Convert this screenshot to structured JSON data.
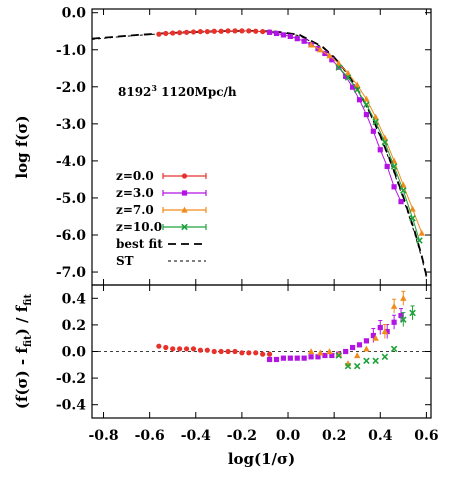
{
  "chart_data": [
    {
      "type": "scatter",
      "panel": "top",
      "ylabel": "log f(σ)",
      "xlim": [
        -0.85,
        0.62
      ],
      "ylim": [
        -7.35,
        0.1
      ],
      "yticks": [
        0.0,
        -1.0,
        -2.0,
        -3.0,
        -4.0,
        -5.0,
        -6.0,
        -7.0
      ],
      "ytick_labels": [
        "0.0",
        "-1.0",
        "-2.0",
        "-3.0",
        "-4.0",
        "-5.0",
        "-6.0",
        "-7.0"
      ],
      "annotation": {
        "base": "8192",
        "sup": "3",
        "rest": " 1120Mpc/h"
      },
      "legend_position": "lower-left",
      "series": [
        {
          "name": "z=0.0",
          "color": "#e8312a",
          "marker": "circle",
          "x": [
            -0.56,
            -0.53,
            -0.5,
            -0.47,
            -0.44,
            -0.41,
            -0.38,
            -0.35,
            -0.32,
            -0.29,
            -0.26,
            -0.23,
            -0.2,
            -0.17,
            -0.14,
            -0.11,
            -0.08
          ],
          "y": [
            -0.58,
            -0.56,
            -0.55,
            -0.54,
            -0.53,
            -0.52,
            -0.51,
            -0.51,
            -0.5,
            -0.5,
            -0.49,
            -0.49,
            -0.49,
            -0.49,
            -0.5,
            -0.51,
            -0.52
          ]
        },
        {
          "name": "z=3.0",
          "color": "#b215e3",
          "marker": "square",
          "x": [
            -0.08,
            -0.05,
            -0.02,
            0.01,
            0.04,
            0.07,
            0.1,
            0.13,
            0.16,
            0.19,
            0.22,
            0.25,
            0.28,
            0.31,
            0.34,
            0.37,
            0.4,
            0.43,
            0.46,
            0.49
          ],
          "y": [
            -0.53,
            -0.56,
            -0.6,
            -0.64,
            -0.7,
            -0.77,
            -0.86,
            -0.97,
            -1.1,
            -1.27,
            -1.47,
            -1.72,
            -2.01,
            -2.35,
            -2.75,
            -3.2,
            -3.7,
            -4.15,
            -4.7,
            -5.1
          ]
        },
        {
          "name": "z=7.0",
          "color": "#f08c1c",
          "marker": "triangle",
          "x": [
            0.1,
            0.14,
            0.18,
            0.22,
            0.26,
            0.3,
            0.34,
            0.38,
            0.42,
            0.46,
            0.5,
            0.54,
            0.58
          ],
          "y": [
            -0.87,
            -1.0,
            -1.16,
            -1.37,
            -1.63,
            -1.95,
            -2.33,
            -2.82,
            -3.38,
            -4.0,
            -4.65,
            -5.3,
            -5.95
          ]
        },
        {
          "name": "z=10.0",
          "color": "#1ea23c",
          "marker": "cross",
          "x": [
            0.22,
            0.26,
            0.3,
            0.34,
            0.38,
            0.42,
            0.46,
            0.5,
            0.54,
            0.57
          ],
          "y": [
            -1.48,
            -1.75,
            -2.08,
            -2.48,
            -2.95,
            -3.5,
            -4.15,
            -4.8,
            -5.55,
            -6.15
          ]
        }
      ],
      "curves": [
        {
          "name": "best fit",
          "color": "#000000",
          "style": "long-dash",
          "x": [
            -0.85,
            -0.75,
            -0.65,
            -0.55,
            -0.45,
            -0.35,
            -0.25,
            -0.15,
            -0.05,
            0.05,
            0.15,
            0.2,
            0.25,
            0.3,
            0.35,
            0.4,
            0.45,
            0.5,
            0.55,
            0.58,
            0.6
          ],
          "y": [
            -0.7,
            -0.65,
            -0.6,
            -0.56,
            -0.53,
            -0.51,
            -0.49,
            -0.49,
            -0.51,
            -0.6,
            -0.92,
            -1.2,
            -1.58,
            -2.05,
            -2.62,
            -3.32,
            -4.1,
            -4.97,
            -5.92,
            -6.57,
            -7.1
          ]
        },
        {
          "name": "ST",
          "color": "#000000",
          "style": "short-dash",
          "x": [
            -0.85,
            -0.75,
            -0.65,
            -0.55,
            -0.45,
            -0.35,
            -0.25,
            -0.15,
            -0.05,
            0.05,
            0.15,
            0.2,
            0.25,
            0.3,
            0.35,
            0.4,
            0.45,
            0.5,
            0.55,
            0.58,
            0.6
          ],
          "y": [
            -0.72,
            -0.66,
            -0.61,
            -0.57,
            -0.54,
            -0.52,
            -0.5,
            -0.5,
            -0.52,
            -0.62,
            -0.94,
            -1.22,
            -1.6,
            -2.07,
            -2.65,
            -3.35,
            -4.14,
            -5.02,
            -5.98,
            -6.62,
            -7.15
          ]
        }
      ]
    },
    {
      "type": "scatter",
      "panel": "bottom",
      "xlabel": "log(1/σ)",
      "ylabel_parts": [
        "(f(σ) - f",
        "fit",
        ") / f",
        "fit"
      ],
      "xlim": [
        -0.85,
        0.62
      ],
      "ylim": [
        -0.5,
        0.5
      ],
      "xticks": [
        -0.8,
        -0.6,
        -0.4,
        -0.2,
        0.0,
        0.2,
        0.4,
        0.6
      ],
      "xtick_labels": [
        "-0.8",
        "-0.6",
        "-0.4",
        "-0.2",
        "0.0",
        "0.2",
        "0.4",
        "0.6"
      ],
      "yticks": [
        0.4,
        0.2,
        0.0,
        -0.2,
        -0.4
      ],
      "ytick_labels": [
        "0.4",
        "0.2",
        "0.0",
        "-0.2",
        "-0.4"
      ],
      "reference_line": 0.0,
      "series": [
        {
          "name": "z=0.0",
          "color": "#e8312a",
          "marker": "circle",
          "x": [
            -0.56,
            -0.53,
            -0.5,
            -0.47,
            -0.44,
            -0.41,
            -0.38,
            -0.35,
            -0.32,
            -0.29,
            -0.26,
            -0.23,
            -0.2,
            -0.17,
            -0.14,
            -0.11,
            -0.08
          ],
          "y": [
            0.04,
            0.03,
            0.02,
            0.02,
            0.02,
            0.02,
            0.01,
            0.01,
            0.0,
            0.0,
            0.0,
            0.0,
            -0.01,
            -0.01,
            -0.01,
            -0.02,
            -0.02
          ]
        },
        {
          "name": "z=3.0",
          "color": "#b215e3",
          "marker": "square",
          "x": [
            -0.08,
            -0.05,
            -0.02,
            0.01,
            0.04,
            0.07,
            0.1,
            0.13,
            0.16,
            0.19,
            0.22,
            0.25,
            0.28,
            0.31,
            0.34,
            0.37,
            0.4,
            0.43,
            0.46,
            0.49
          ],
          "y": [
            -0.06,
            -0.06,
            -0.05,
            -0.05,
            -0.05,
            -0.05,
            -0.04,
            -0.04,
            -0.03,
            -0.03,
            -0.02,
            0.0,
            0.03,
            0.05,
            0.08,
            0.12,
            0.18,
            0.15,
            0.22,
            0.27
          ]
        },
        {
          "name": "z=7.0",
          "color": "#f08c1c",
          "marker": "triangle",
          "x": [
            0.1,
            0.14,
            0.18,
            0.22,
            0.26,
            0.3,
            0.34,
            0.38,
            0.42,
            0.46,
            0.5
          ],
          "y": [
            0.0,
            -0.01,
            0.0,
            -0.02,
            -0.09,
            -0.03,
            0.02,
            0.1,
            0.15,
            0.34,
            0.4
          ]
        },
        {
          "name": "z=10.0",
          "color": "#1ea23c",
          "marker": "cross",
          "x": [
            0.22,
            0.26,
            0.3,
            0.34,
            0.38,
            0.42,
            0.46,
            0.5,
            0.54
          ],
          "y": [
            -0.03,
            -0.11,
            -0.11,
            -0.07,
            -0.07,
            -0.04,
            0.02,
            0.24,
            0.29
          ]
        }
      ]
    }
  ]
}
